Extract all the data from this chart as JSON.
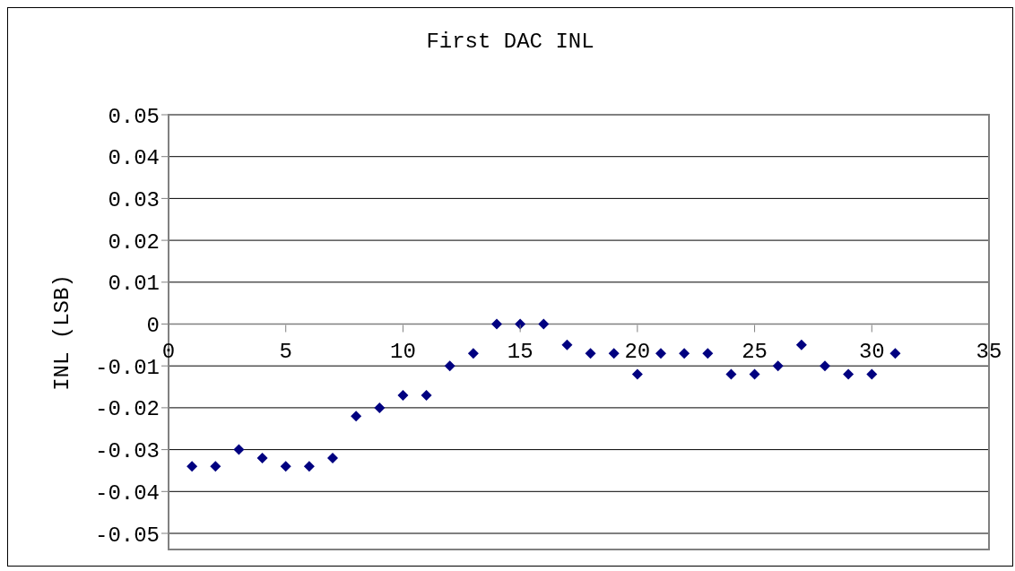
{
  "chart_data": {
    "type": "scatter",
    "title": "First DAC INL",
    "ylabel": "INL (LSB)",
    "x": [
      1,
      2,
      3,
      4,
      5,
      6,
      7,
      8,
      9,
      10,
      11,
      12,
      13,
      14,
      15,
      16,
      17,
      18,
      19,
      20,
      21,
      22,
      23,
      24,
      25,
      26,
      27,
      28,
      29,
      30,
      31
    ],
    "series": [
      {
        "color": "#000080",
        "values": [
          -0.034,
          -0.034,
          -0.03,
          -0.032,
          -0.034,
          -0.034,
          -0.032,
          -0.022,
          -0.02,
          -0.017,
          -0.017,
          -0.01,
          -0.007,
          0,
          0,
          0,
          -0.005,
          -0.007,
          -0.007,
          -0.012,
          -0.007,
          -0.007,
          -0.007,
          -0.012,
          -0.012,
          -0.01,
          -0.005,
          -0.01,
          -0.012,
          -0.012,
          -0.007
        ]
      }
    ],
    "xlim": [
      0,
      35
    ],
    "xticks": [
      0,
      5,
      10,
      15,
      20,
      25,
      30,
      35
    ],
    "ylim": [
      -0.05,
      0.05
    ],
    "yticks": [
      {
        "value": 0.05,
        "label": "0.05"
      },
      {
        "value": 0.04,
        "label": "0.04"
      },
      {
        "value": 0.03,
        "label": "0.03"
      },
      {
        "value": 0.02,
        "label": "0.02"
      },
      {
        "value": 0.01,
        "label": "0.01"
      },
      {
        "value": 0,
        "label": "0"
      },
      {
        "value": -0.01,
        "label": "-0.01"
      },
      {
        "value": -0.02,
        "label": "-0.02"
      },
      {
        "value": -0.03,
        "label": "-0.03"
      },
      {
        "value": -0.04,
        "label": "-0.04"
      },
      {
        "value": -0.05,
        "label": "-0.05"
      }
    ],
    "grid": "y",
    "marker": "diamond"
  }
}
